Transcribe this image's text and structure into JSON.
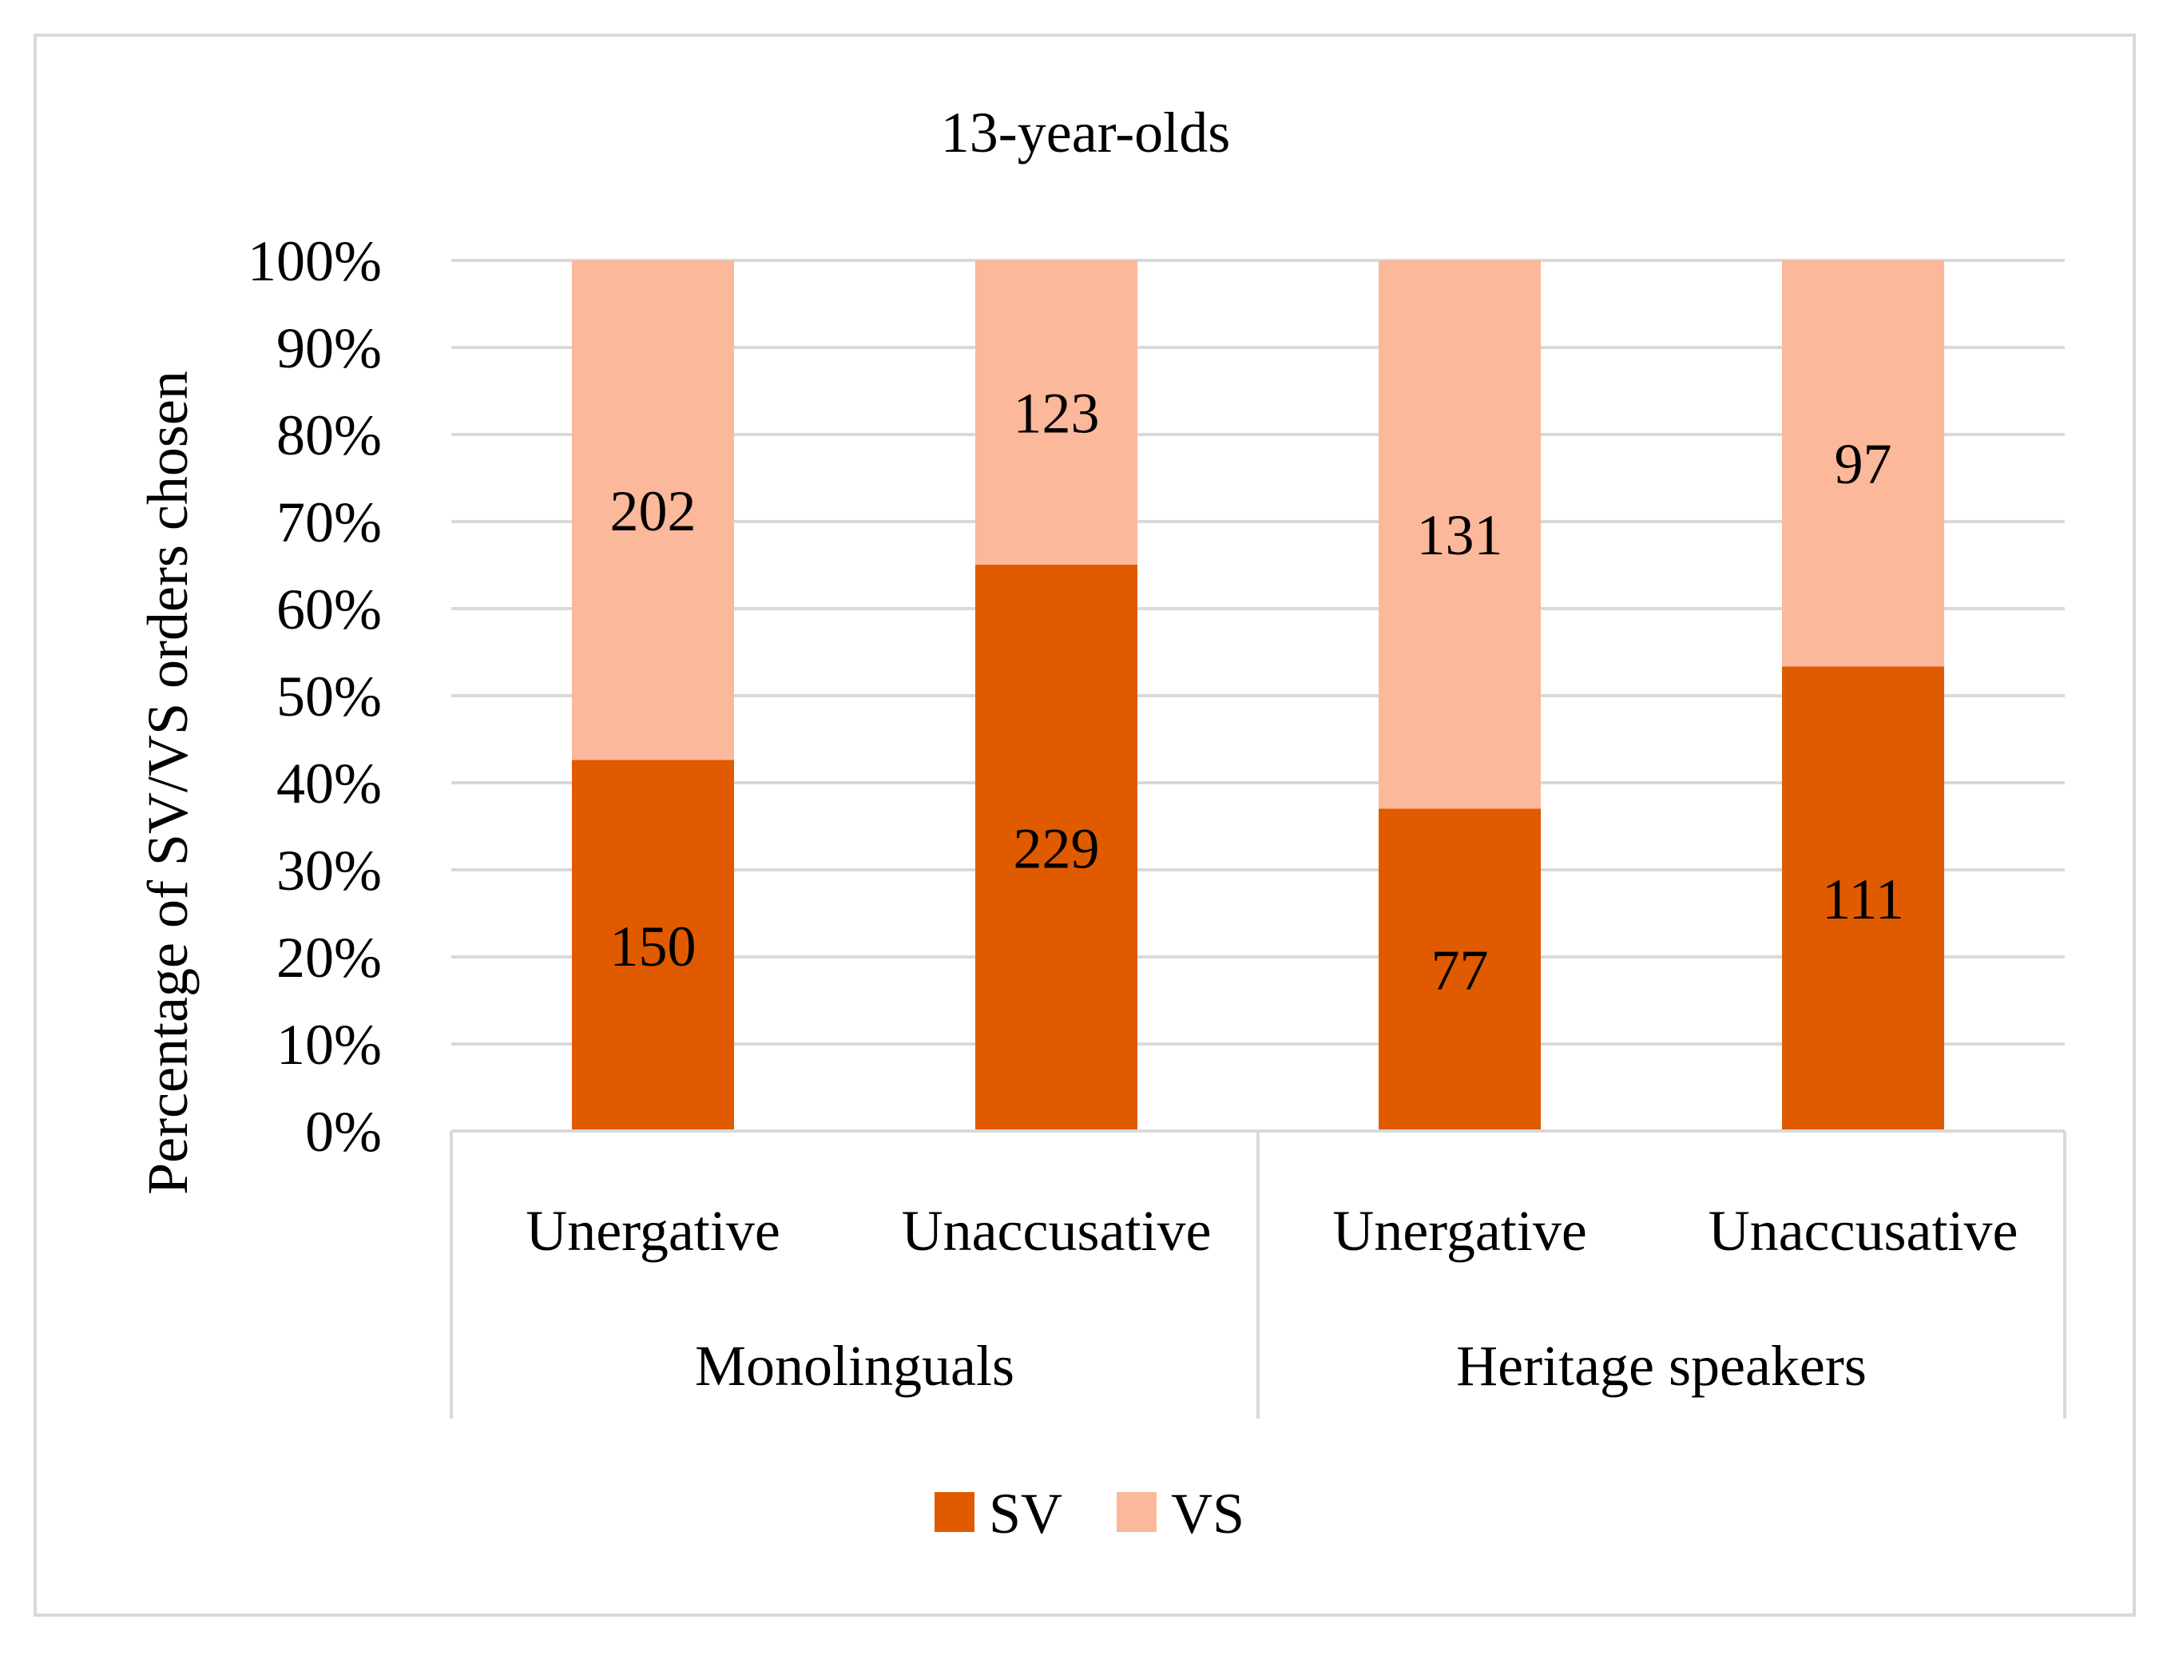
{
  "chart_data": {
    "type": "bar",
    "stacked": true,
    "normalized": true,
    "title": "13-year-olds",
    "xlabel": "",
    "ylabel": "Percentage of SV/VS orders chosen",
    "ylim": [
      0,
      100
    ],
    "y_ticks": [
      "0%",
      "10%",
      "20%",
      "30%",
      "40%",
      "50%",
      "60%",
      "70%",
      "80%",
      "90%",
      "100%"
    ],
    "grid": true,
    "categories": [
      "Unergative",
      "Unaccusative",
      "Unergative",
      "Unaccusative"
    ],
    "groups": [
      {
        "label": "Monolinguals",
        "categories": [
          "Unergative",
          "Unaccusative"
        ]
      },
      {
        "label": "Heritage speakers",
        "categories": [
          "Unergative",
          "Unaccusative"
        ]
      }
    ],
    "series": [
      {
        "name": "SV",
        "values": [
          150,
          229,
          77,
          111
        ],
        "labels": [
          "150",
          "229",
          "77",
          "111"
        ],
        "color": "#e05a00"
      },
      {
        "name": "VS",
        "values": [
          202,
          123,
          131,
          97
        ],
        "labels": [
          "202",
          "123",
          "131",
          "97"
        ],
        "color": "#fbb89a"
      }
    ],
    "legend_position": "bottom-center"
  },
  "colors": {
    "grid": "#d9d9d9",
    "frame": "#d9d9d9",
    "text": "#000000"
  }
}
